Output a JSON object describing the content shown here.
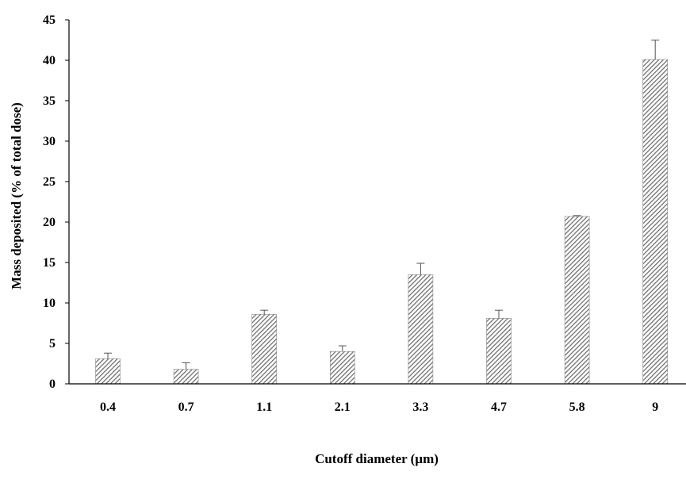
{
  "chart_data": {
    "type": "bar",
    "title": "",
    "xlabel": "Cutoff diameter (µm)",
    "ylabel": "Mass deposited (% of total dose)",
    "categories": [
      "0.4",
      "0.7",
      "1.1",
      "2.1",
      "3.3",
      "4.7",
      "5.8",
      "9"
    ],
    "values": [
      3.1,
      1.8,
      8.6,
      4.0,
      13.5,
      8.1,
      20.7,
      40.1
    ],
    "error": [
      0.7,
      0.8,
      0.5,
      0.7,
      1.4,
      1.0,
      0.1,
      2.4
    ],
    "ylim": [
      0,
      45
    ],
    "yticks": [
      0,
      5,
      10,
      15,
      20,
      25,
      30,
      35,
      40,
      45
    ],
    "grid": false,
    "legend": "none",
    "bar_fill": "#8a8a8a",
    "bar_pattern": "diagonal-hatch",
    "axis_color": "#000000"
  }
}
